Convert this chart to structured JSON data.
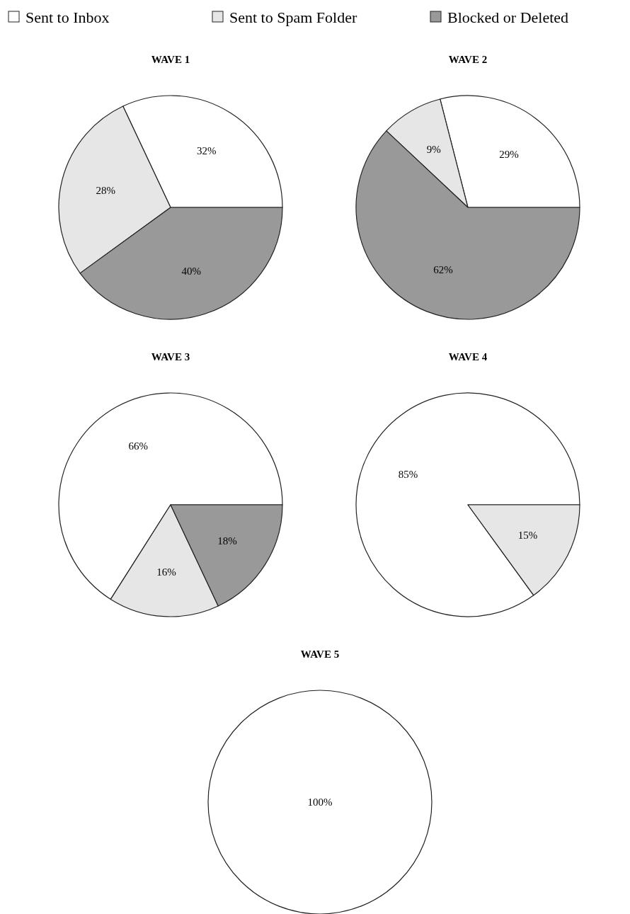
{
  "chart_data": [
    {
      "type": "pie",
      "title": "WAVE 1",
      "categories": [
        "Sent to Inbox",
        "Sent to Spam Folder",
        "Blocked or Deleted"
      ],
      "values": [
        32,
        28,
        40
      ],
      "colors": [
        "#ffffff",
        "#e6e6e6",
        "#999999"
      ],
      "value_labels": [
        "32%",
        "28%",
        "40%"
      ],
      "legend": "top"
    },
    {
      "type": "pie",
      "title": "WAVE 2",
      "categories": [
        null,
        null,
        null
      ],
      "values": [
        29,
        9,
        62
      ],
      "colors": [
        "#ffffff",
        "#e6e6e6",
        "#999999"
      ],
      "value_labels": [
        "29%",
        "9%",
        "62%"
      ]
    },
    {
      "type": "pie",
      "title": "WAVE 3",
      "categories": [
        null,
        null,
        null
      ],
      "values": [
        66,
        16,
        18
      ],
      "colors": [
        "#ffffff",
        "#e6e6e6",
        "#999999"
      ],
      "value_labels": [
        "66%",
        "16%",
        "18%"
      ]
    },
    {
      "type": "pie",
      "title": "WAVE 4",
      "categories": [
        null,
        null
      ],
      "values": [
        85,
        15
      ],
      "colors": [
        "#ffffff",
        "#e6e6e6"
      ],
      "value_labels": [
        "85%",
        "15%"
      ]
    },
    {
      "type": "pie",
      "title": "WAVE 5",
      "categories": [
        null
      ],
      "values": [
        100
      ],
      "colors": [
        "#ffffff"
      ],
      "value_labels": [
        "100%"
      ]
    }
  ]
}
